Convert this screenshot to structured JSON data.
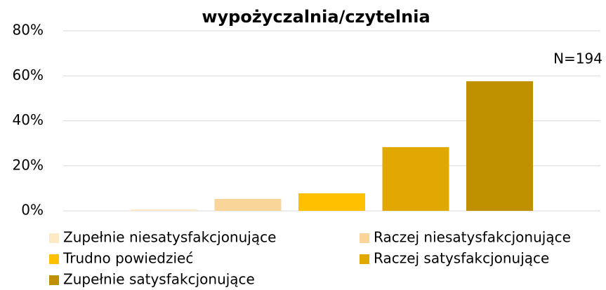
{
  "chart_data": {
    "type": "bar",
    "title": "wypożyczalnia/czytelnia",
    "annotation": "N=194",
    "categories": [
      null
    ],
    "series": [
      {
        "name": "Zupełnie niesatysfakcjonujące",
        "color": "#fde9c4",
        "values": [
          0.6
        ]
      },
      {
        "name": "Raczej niesatysfakcjonujące",
        "color": "#fad59a",
        "values": [
          5.3
        ]
      },
      {
        "name": "Trudno powiedzieć",
        "color": "#ffc000",
        "values": [
          7.8
        ]
      },
      {
        "name": "Raczej satysfakcjonujące",
        "color": "#e0a800",
        "values": [
          28.3
        ]
      },
      {
        "name": "Zupełnie satysfakcjonujące",
        "color": "#bf9000",
        "values": [
          57.6
        ]
      }
    ],
    "ylim": [
      0,
      80
    ],
    "yticks": [
      {
        "value": 0,
        "label": "0%"
      },
      {
        "value": 20,
        "label": "20%"
      },
      {
        "value": 40,
        "label": "40%"
      },
      {
        "value": 60,
        "label": "60%"
      },
      {
        "value": 80,
        "label": "80%"
      }
    ],
    "grid": true,
    "legend": "bottom"
  }
}
